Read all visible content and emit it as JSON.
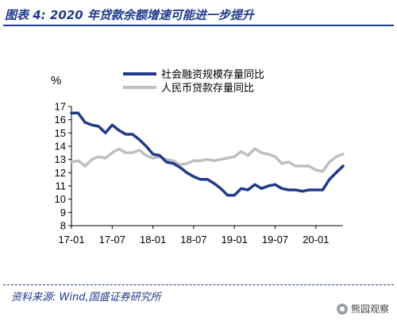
{
  "header": {
    "title": "图表 4:  2020 年贷款余额增速可能进一步提升"
  },
  "footer": {
    "source": "资料来源:  Wind,国盛证券研究所",
    "watermark": "熊园观察"
  },
  "chart_data": {
    "type": "line",
    "title": "",
    "ylabel": "%",
    "xlabel": "",
    "ylim": [
      8,
      17
    ],
    "yticks": [
      8,
      9,
      10,
      11,
      12,
      13,
      14,
      15,
      16,
      17
    ],
    "xticks": [
      {
        "label": "17-01",
        "x": 0
      },
      {
        "label": "17-07",
        "x": 6
      },
      {
        "label": "18-01",
        "x": 12
      },
      {
        "label": "18-07",
        "x": 18
      },
      {
        "label": "19-01",
        "x": 24
      },
      {
        "label": "19-07",
        "x": 30
      },
      {
        "label": "20-01",
        "x": 36
      }
    ],
    "xlim": [
      0,
      40
    ],
    "legend": "top-center",
    "grid": false,
    "series": [
      {
        "name": "社会融资规模存量同比",
        "color": "#1f3a8a",
        "width": 3.5,
        "x": [
          0,
          1,
          2,
          3,
          4,
          5,
          6,
          7,
          8,
          9,
          10,
          11,
          12,
          13,
          14,
          15,
          16,
          17,
          18,
          19,
          20,
          21,
          22,
          23,
          24,
          25,
          26,
          27,
          28,
          29,
          30,
          31,
          32,
          33,
          34,
          35,
          36,
          37,
          38,
          39,
          40
        ],
        "y": [
          16.5,
          16.5,
          15.8,
          15.6,
          15.5,
          15.0,
          15.6,
          15.2,
          14.9,
          14.9,
          14.5,
          14.0,
          13.4,
          13.3,
          12.8,
          12.7,
          12.4,
          12.0,
          11.7,
          11.5,
          11.5,
          11.2,
          10.8,
          10.3,
          10.3,
          10.8,
          10.7,
          11.1,
          10.8,
          11.0,
          11.1,
          10.8,
          10.7,
          10.7,
          10.6,
          10.7,
          10.7,
          10.7,
          11.5,
          12.0,
          12.5
        ]
      },
      {
        "name": "人民币贷款存量同比",
        "color": "#bfbfbf",
        "width": 3.5,
        "x": [
          0,
          1,
          2,
          3,
          4,
          5,
          6,
          7,
          8,
          9,
          10,
          11,
          12,
          13,
          14,
          15,
          16,
          17,
          18,
          19,
          20,
          21,
          22,
          23,
          24,
          25,
          26,
          27,
          28,
          29,
          30,
          31,
          32,
          33,
          34,
          35,
          36,
          37,
          38,
          39,
          40
        ],
        "y": [
          12.8,
          12.9,
          12.5,
          13.0,
          13.2,
          13.1,
          13.5,
          13.8,
          13.5,
          13.5,
          13.7,
          13.3,
          13.1,
          13.2,
          13.0,
          12.9,
          12.6,
          12.7,
          12.9,
          12.9,
          13.0,
          12.9,
          13.0,
          13.1,
          13.2,
          13.6,
          13.3,
          13.8,
          13.5,
          13.4,
          13.2,
          12.7,
          12.8,
          12.5,
          12.5,
          12.5,
          12.2,
          12.1,
          12.8,
          13.2,
          13.4
        ]
      }
    ]
  }
}
